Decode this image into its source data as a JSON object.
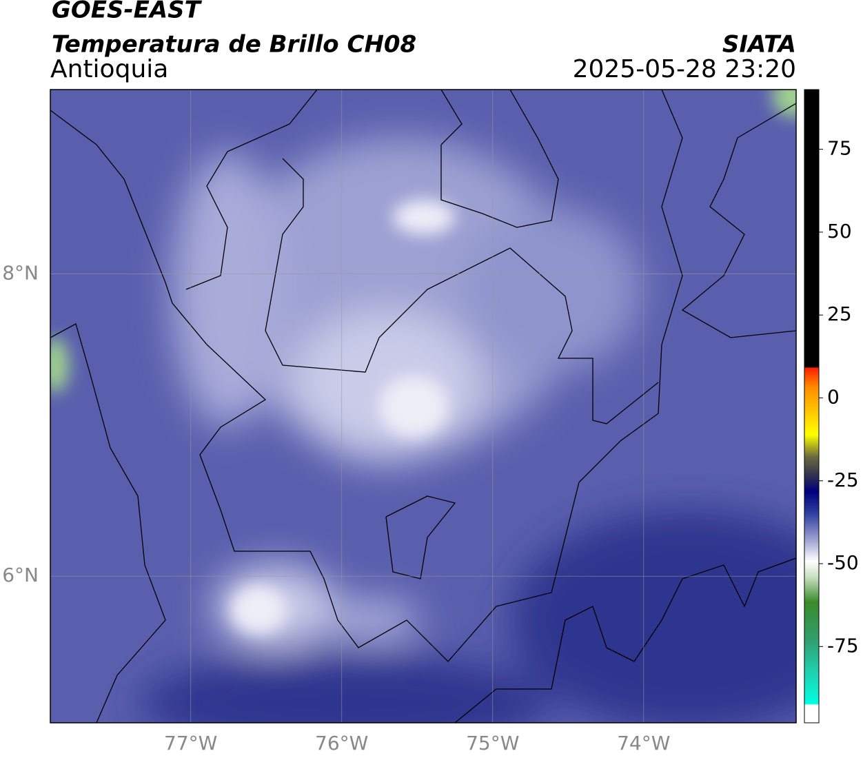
{
  "header": {
    "title": "GOES-EAST",
    "subtitle": "Temperatura de Brillo CH08",
    "region": "Antioquia",
    "source": "SIATA",
    "timestamp": "2025-05-28 23:20"
  },
  "map": {
    "xlim": [
      -77.93,
      -72.99
    ],
    "ylim": [
      5.03,
      9.22
    ],
    "xticks": [
      {
        "value": -77,
        "label": "77°W"
      },
      {
        "value": -76,
        "label": "76°W"
      },
      {
        "value": -75,
        "label": "75°W"
      },
      {
        "value": -74,
        "label": "74°W"
      }
    ],
    "yticks": [
      {
        "value": 6,
        "label": "6°N"
      },
      {
        "value": 8,
        "label": "8°N"
      }
    ],
    "grid": true
  },
  "colorbar": {
    "clim": [
      -98,
      93
    ],
    "ticks": [
      75,
      50,
      25,
      0,
      -25,
      -50,
      -75
    ]
  }
}
